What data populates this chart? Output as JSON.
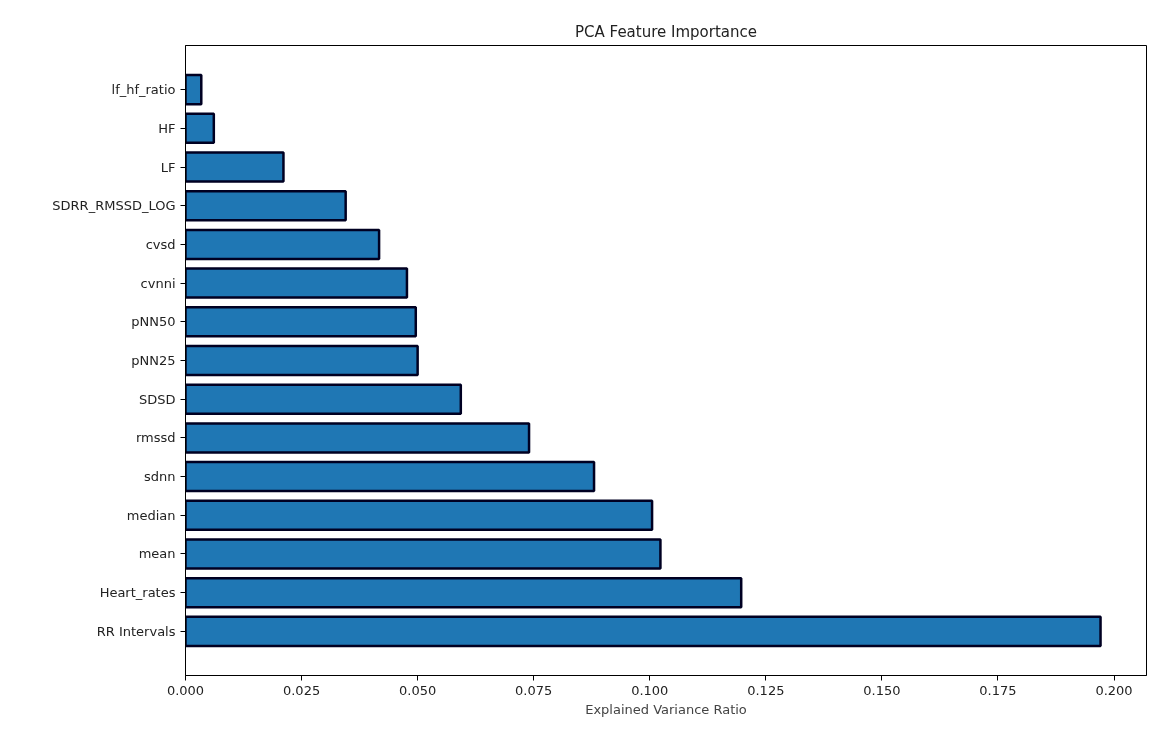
{
  "chart_data": {
    "type": "bar",
    "orientation": "horizontal",
    "title": "PCA Feature Importance",
    "xlabel": "Explained Variance Ratio",
    "categories": [
      "lf_hf_ratio",
      "HF",
      "LF",
      "SDRR_RMSSD_LOG",
      "cvsd",
      "cvnni",
      "pNN50",
      "pNN25",
      "SDSD",
      "rmssd",
      "sdnn",
      "median",
      "mean",
      "Heart_rates",
      "RR Intervals"
    ],
    "values": [
      0.0034,
      0.0061,
      0.0211,
      0.0345,
      0.0417,
      0.0477,
      0.0496,
      0.05,
      0.0593,
      0.074,
      0.088,
      0.1005,
      0.1023,
      0.1197,
      0.1971
    ],
    "color": "#1f77b4",
    "xlim": [
      0,
      0.207
    ],
    "xticks": [
      {
        "value": 0,
        "label": "0.000"
      },
      0.025,
      {
        "value": 0.05,
        "label": "0.050"
      },
      0.075,
      {
        "value": 0.1,
        "label": "0.100"
      },
      0.125,
      {
        "value": 0.15,
        "label": "0.150"
      },
      0.175,
      {
        "value": 0.2,
        "label": "0.200"
      }
    ],
    "grid": false
  }
}
